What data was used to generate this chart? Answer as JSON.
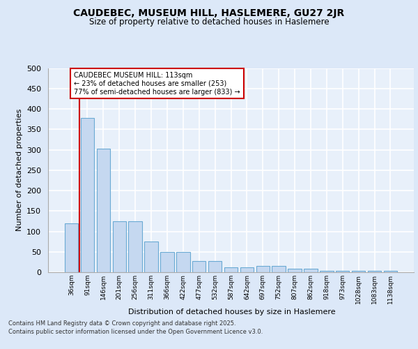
{
  "title": "CAUDEBEC, MUSEUM HILL, HASLEMERE, GU27 2JR",
  "subtitle": "Size of property relative to detached houses in Haslemere",
  "xlabel": "Distribution of detached houses by size in Haslemere",
  "ylabel": "Number of detached properties",
  "categories": [
    "36sqm",
    "91sqm",
    "146sqm",
    "201sqm",
    "256sqm",
    "311sqm",
    "366sqm",
    "422sqm",
    "477sqm",
    "532sqm",
    "587sqm",
    "642sqm",
    "697sqm",
    "752sqm",
    "807sqm",
    "862sqm",
    "918sqm",
    "973sqm",
    "1028sqm",
    "1083sqm",
    "1138sqm"
  ],
  "values": [
    120,
    378,
    302,
    125,
    125,
    75,
    50,
    50,
    27,
    27,
    12,
    12,
    15,
    15,
    8,
    8,
    3,
    3,
    3,
    3,
    3
  ],
  "bar_color": "#c5d8f0",
  "bar_edge_color": "#6aaad4",
  "fig_bg_color": "#dce8f8",
  "axes_bg_color": "#e8f0fa",
  "grid_color": "#ffffff",
  "annotation_text": "CAUDEBEC MUSEUM HILL: 113sqm\n← 23% of detached houses are smaller (253)\n77% of semi-detached houses are larger (833) →",
  "annotation_box_facecolor": "#ffffff",
  "annotation_box_edgecolor": "#cc0000",
  "vline_color": "#cc0000",
  "vline_x_index": 1,
  "footer_line1": "Contains HM Land Registry data © Crown copyright and database right 2025.",
  "footer_line2": "Contains public sector information licensed under the Open Government Licence v3.0.",
  "ylim": [
    0,
    500
  ],
  "yticks": [
    0,
    50,
    100,
    150,
    200,
    250,
    300,
    350,
    400,
    450,
    500
  ]
}
